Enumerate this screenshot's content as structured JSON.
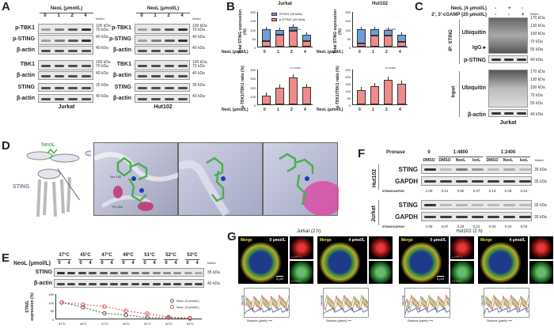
{
  "panels": {
    "A": {
      "label": "A",
      "treatment_header": "NeoL (μmol/L)",
      "doses": [
        "0",
        "1",
        "2",
        "4"
      ],
      "marker_header": "Marker",
      "blots": [
        {
          "cell_line": "Jurkat",
          "rows": [
            {
              "label": "p-TBK1",
              "markers": [
                "100 kDa",
                "70 kDa"
              ]
            },
            {
              "label": "p-STING",
              "markers": [
                "40 kDa"
              ]
            },
            {
              "label": "β-actin",
              "markers": [
                "40 kDa"
              ]
            },
            {
              "label": "TBK1",
              "markers": [
                "100 kDa",
                "70 kDa"
              ]
            },
            {
              "label": "β-actin",
              "markers": [
                "40 kDa"
              ]
            },
            {
              "label": "STING",
              "markers": [
                "35 kDa"
              ]
            },
            {
              "label": "β-actin",
              "markers": [
                "40 kDa"
              ]
            }
          ]
        },
        {
          "cell_line": "Hut102",
          "rows": [
            {
              "label": "p-TBK1",
              "markers": [
                "100 kDa",
                "70 kDa"
              ]
            },
            {
              "label": "p-STING",
              "markers": [
                "40 kDa"
              ]
            },
            {
              "label": "β-actin",
              "markers": [
                "40 kDa"
              ]
            },
            {
              "label": "TBK1",
              "markers": [
                "100 kDa",
                "70 kDa"
              ]
            },
            {
              "label": "β-actin",
              "markers": [
                "40 kDa"
              ]
            },
            {
              "label": "STING",
              "markers": [
                "35 kDa"
              ]
            },
            {
              "label": "β-actin",
              "markers": [
                "40 kDa"
              ]
            }
          ]
        }
      ]
    },
    "B": {
      "label": "B",
      "x_label": "NeoL (μmol/L)"
    },
    "C": {
      "label": "C",
      "conditions": [
        {
          "label": "NeoL (4 μmol/L)",
          "values": [
            "-",
            "+",
            "-"
          ]
        },
        {
          "label": "2', 3'-cGAMP (20 μmol/L)",
          "values": [
            "-",
            "-",
            "+"
          ]
        }
      ],
      "marker_header": "Marker",
      "ip_label": "IP: STING",
      "input_label": "Input",
      "ip_rows": [
        {
          "label": "Ubiquitin",
          "markers": [
            "170 kDa",
            "130 kDa",
            "100 kDa",
            "70 kDa",
            "55 kDa"
          ]
        },
        {
          "label": "IgG",
          "markers": []
        },
        {
          "label": "p-STING",
          "markers": [
            "40 kDa"
          ]
        }
      ],
      "input_rows": [
        {
          "label": "Ubiquitin",
          "markers": [
            "170 kDa",
            "130 kDa",
            "100 kDa",
            "70 kDa",
            "55 kDa"
          ]
        },
        {
          "label": "β-actin",
          "markers": [
            "40 kDa"
          ]
        }
      ],
      "cell_line": "Jurkat"
    },
    "D": {
      "label": "D",
      "ligand_label": "NeoL",
      "protein_label": "STING",
      "residue_labels": [
        "Ser-162",
        "Thr-263"
      ]
    },
    "E": {
      "label": "E",
      "temperatures": [
        "37°C",
        "45°C",
        "47°C",
        "49°C",
        "51°C",
        "52°C",
        "53°C"
      ],
      "dose_header": "NeoL (μmol/L)",
      "doses": [
        "0",
        "4"
      ],
      "marker_header": "Marker",
      "rows": [
        {
          "label": "STING",
          "marker": "35 kDa"
        },
        {
          "label": "β-actin",
          "marker": "40 kDa"
        }
      ]
    },
    "F": {
      "label": "F",
      "pronase_label": "Pronase",
      "pronase_groups": [
        "0",
        "1:4800",
        "1:2400"
      ],
      "lanes": [
        "DMSO",
        "DMSO",
        "NeoL",
        "IsoL",
        "DMSO",
        "NeoL",
        "IsoL"
      ],
      "marker_header": "Marker",
      "blocks": [
        {
          "cell_line": "Hut102",
          "rows": [
            {
              "label": "STING",
              "marker": "35 kDa"
            },
            {
              "label": "GAPDH",
              "marker": "35 kDa"
            }
          ],
          "ratio_label": "STING/GAPDH",
          "ratios": [
            "1.00",
            "0.21",
            "0.50",
            "0.37",
            "0.13",
            "0.28",
            "0.12"
          ]
        },
        {
          "cell_line": "Jurkat",
          "rows": [
            {
              "label": "STING",
              "marker": "35 kDa"
            },
            {
              "label": "GAPDH",
              "marker": "35 kDa"
            }
          ],
          "ratio_label": "STING/GAPDH",
          "ratios": [
            "1.00",
            "0.07",
            "0.23",
            "0.21",
            "0.03",
            "0.24",
            "0.04"
          ]
        }
      ]
    },
    "G": {
      "label": "G",
      "groups": [
        {
          "title": "Jurkat (2 h)",
          "conditions": [
            "0 μmol/L",
            "4 μmol/L"
          ]
        },
        {
          "title": "Hut102 (2 h)",
          "conditions": [
            "0 μmol/L",
            "4 μmol/L"
          ]
        }
      ],
      "merge_label": "Merge",
      "lamp1_label": "LAMP1",
      "sting_label": "STING",
      "scale_bar": "5 μm",
      "profile_ylabel": "Intensity",
      "profile_xlabel": "Distance (pixels)"
    }
  },
  "chart_data": [
    {
      "panel": "B",
      "type": "bar",
      "title": "Jurkat",
      "stacked": true,
      "categories": [
        "0",
        "1",
        "2",
        "4"
      ],
      "xlabel": "NeoL (μmol/L)",
      "ylabel": "Total STING expression (%)",
      "ylim": [
        0,
        200
      ],
      "yticks": [
        0,
        50,
        100,
        150,
        200
      ],
      "legend": [
        "STING (35 kDa)",
        "p-STING (40 kDa)"
      ],
      "series": [
        {
          "name": "p-STING (40 kDa)",
          "color": "#f08b8b",
          "values": [
            30,
            68,
            88,
            30
          ]
        },
        {
          "name": "STING (35 kDa)",
          "color": "#6a9fd8",
          "values": [
            70,
            27,
            22,
            36
          ]
        }
      ],
      "totals": [
        100,
        95,
        110,
        66
      ],
      "annotation": "P<0.0122"
    },
    {
      "panel": "B",
      "type": "bar",
      "title": "Hut102",
      "stacked": true,
      "categories": [
        "0",
        "1",
        "2",
        "4"
      ],
      "xlabel": "NeoL (μmol/L)",
      "ylabel": "Total STING expression (%)",
      "ylim": [
        0,
        200
      ],
      "yticks": [
        0,
        50,
        100,
        150,
        200
      ],
      "series": [
        {
          "name": "p-STING (40 kDa)",
          "color": "#f08b8b",
          "values": [
            18,
            62,
            62,
            26
          ]
        },
        {
          "name": "STING (35 kDa)",
          "color": "#6a9fd8",
          "values": [
            82,
            36,
            32,
            40
          ]
        }
      ],
      "totals": [
        100,
        98,
        94,
        66
      ],
      "annotation": "P<0.0020"
    },
    {
      "panel": "B",
      "type": "bar",
      "title": "Jurkat",
      "categories": [
        "0",
        "1",
        "2",
        "4"
      ],
      "xlabel": "NeoL (μmol/L)",
      "ylabel": "p-TBK1/TBK1 ratio (%)",
      "ylim": [
        0,
        400
      ],
      "yticks": [
        0,
        100,
        200,
        300,
        400
      ],
      "values": [
        100,
        190,
        300,
        200
      ],
      "color": "#f08b8b",
      "annotation": "P<0.0010"
    },
    {
      "panel": "B",
      "type": "bar",
      "title": "Hut102",
      "categories": [
        "0",
        "1",
        "2",
        "4"
      ],
      "xlabel": "NeoL (μmol/L)",
      "ylabel": "p-TBK1/TBK1 ratio (%)",
      "ylim": [
        0,
        250
      ],
      "yticks": [
        0,
        50,
        100,
        150,
        200,
        250
      ],
      "values": [
        98,
        128,
        170,
        143
      ],
      "color": "#f08b8b",
      "annotation": "P<0.0005"
    },
    {
      "panel": "E",
      "type": "line",
      "categories": [
        "37°C",
        "45°C",
        "47°C",
        "49°C",
        "51°C",
        "52°C",
        "53°C"
      ],
      "ylabel": "STING expression (%)",
      "ylim": [
        0,
        150
      ],
      "yticks": [
        0,
        50,
        100,
        150
      ],
      "legend_position": "right",
      "series": [
        {
          "name": "NeoL (0 μmol/L)",
          "color": "#555555",
          "values": [
            100,
            72,
            36,
            26,
            10,
            10,
            5
          ]
        },
        {
          "name": "NeoL (4 μmol/L)",
          "color": "#d9534f",
          "values": [
            100,
            88,
            76,
            50,
            34,
            14,
            8
          ]
        }
      ]
    }
  ]
}
